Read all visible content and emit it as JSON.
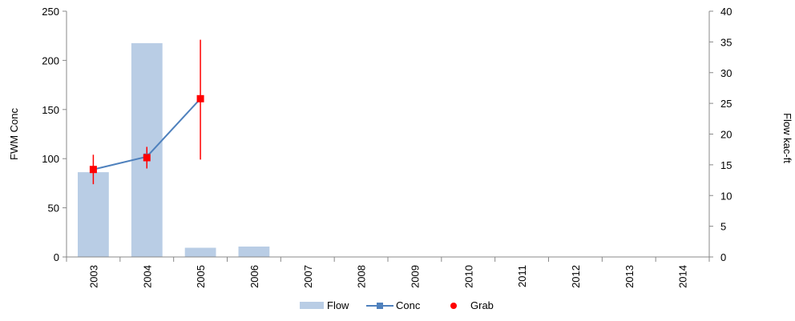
{
  "chart_data": {
    "type": "bar",
    "categories": [
      "2003",
      "2004",
      "2005",
      "2006",
      "2007",
      "2008",
      "2009",
      "2010",
      "2011",
      "2012",
      "2013",
      "2014"
    ],
    "ylabel": "FWM Conc",
    "y2label": "Flow kac-ft",
    "ylim": [
      0,
      250
    ],
    "y2lim": [
      0,
      40
    ],
    "yticks": [
      "0",
      "50",
      "100",
      "150",
      "200",
      "250"
    ],
    "y2ticks": [
      "0",
      "5",
      "10",
      "15",
      "20",
      "25",
      "30",
      "35",
      "40"
    ],
    "grid": false,
    "legend_position": "bottom",
    "series": [
      {
        "name": "Flow",
        "type": "bar",
        "axis": "right",
        "color": "#b9cde5",
        "values": [
          13.8,
          34.8,
          1.5,
          1.7,
          null,
          null,
          null,
          null,
          null,
          null,
          null,
          null
        ]
      },
      {
        "name": "Conc",
        "type": "line",
        "axis": "left",
        "color": "#4f81bd",
        "marker": "square",
        "values": [
          89,
          102,
          161,
          null,
          null,
          null,
          null,
          null,
          null,
          null,
          null,
          null
        ]
      },
      {
        "name": "Grab",
        "type": "scatter",
        "axis": "left",
        "color": "#ff0000",
        "marker": "circle",
        "values": [
          89,
          101,
          161,
          null,
          null,
          null,
          null,
          null,
          null,
          null,
          null,
          null
        ],
        "error_low": [
          74,
          90,
          99,
          null,
          null,
          null,
          null,
          null,
          null,
          null,
          null,
          null
        ],
        "error_high": [
          104,
          112,
          221,
          null,
          null,
          null,
          null,
          null,
          null,
          null,
          null,
          null
        ]
      }
    ]
  }
}
